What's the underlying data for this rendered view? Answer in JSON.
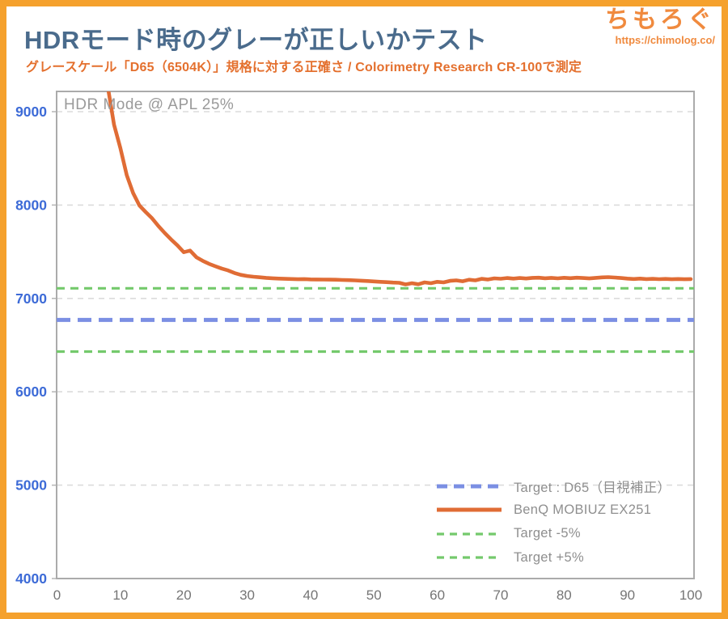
{
  "page": {
    "bg": "#FFFFFF",
    "frame_color": "#F5A12D"
  },
  "header": {
    "title": "HDRモード時のグレーが正しいかテスト",
    "title_color": "#4A6B8C",
    "subtitle": "グレースケール「D65（6504K）」規格に対する正確さ / Colorimetry Research CR-100で測定",
    "subtitle_color": "#E4702E",
    "logo": {
      "text": "ちもろぐ",
      "url": "https://chimolog.co/",
      "color": "#F08A3E"
    }
  },
  "chart_data": {
    "type": "line",
    "title": "HDRモード時のグレーが正しいかテスト",
    "annotation": "HDR Mode @ APL 25%",
    "xlabel": "",
    "ylabel": "",
    "x_axis": {
      "ticks": [
        0,
        10,
        20,
        30,
        40,
        50,
        60,
        70,
        80,
        90,
        100
      ],
      "range": [
        0,
        100
      ],
      "label_color": "#757575"
    },
    "y_axis": {
      "ticks": [
        4000,
        5000,
        6000,
        7000,
        8000,
        9000
      ],
      "range": [
        4000,
        9220
      ],
      "label_color": "#3D6BD7"
    },
    "grid": {
      "color": "#DBDBDB",
      "style": "dashed",
      "horizontal": true,
      "vertical": false
    },
    "border_color": "#ABABAB",
    "tick_color": "#B5B5B5",
    "target_lines": [
      {
        "name": "target-d65",
        "label": "Target : D65（目視補正）",
        "value": 6770,
        "color": "#7B8FE3",
        "style": "thick-dashed"
      },
      {
        "name": "target-minus5",
        "label": "Target -5%",
        "value": 6431,
        "color": "#74C96C",
        "style": "dashed"
      },
      {
        "name": "target-plus5",
        "label": "Target +5%",
        "value": 7108,
        "color": "#74C96C",
        "style": "dashed"
      }
    ],
    "series": [
      {
        "name": "BenQ MOBIUZ EX251",
        "color": "#E06C35",
        "x": [
          7,
          8,
          9,
          10,
          11,
          12,
          13,
          14,
          15,
          16,
          17,
          18,
          19,
          20,
          21,
          22,
          23,
          24,
          25,
          26,
          27,
          28,
          29,
          30,
          31,
          32,
          33,
          34,
          35,
          36,
          37,
          38,
          39,
          40,
          41,
          42,
          43,
          44,
          45,
          46,
          47,
          48,
          49,
          50,
          51,
          52,
          53,
          54,
          55,
          56,
          57,
          58,
          59,
          60,
          61,
          62,
          63,
          64,
          65,
          66,
          67,
          68,
          69,
          70,
          71,
          72,
          73,
          74,
          75,
          76,
          77,
          78,
          79,
          80,
          81,
          82,
          83,
          84,
          85,
          86,
          87,
          88,
          89,
          90,
          91,
          92,
          93,
          94,
          95,
          96,
          97,
          98,
          99,
          100
        ],
        "y": [
          9800,
          9270,
          8860,
          8610,
          8320,
          8130,
          7995,
          7925,
          7858,
          7775,
          7700,
          7632,
          7568,
          7495,
          7512,
          7440,
          7402,
          7370,
          7344,
          7320,
          7300,
          7272,
          7252,
          7240,
          7232,
          7226,
          7220,
          7216,
          7212,
          7210,
          7208,
          7205,
          7207,
          7204,
          7203,
          7202,
          7201,
          7200,
          7198,
          7196,
          7193,
          7190,
          7186,
          7182,
          7178,
          7174,
          7170,
          7167,
          7150,
          7163,
          7152,
          7172,
          7163,
          7178,
          7172,
          7188,
          7193,
          7184,
          7200,
          7193,
          7210,
          7203,
          7215,
          7211,
          7218,
          7212,
          7218,
          7213,
          7220,
          7222,
          7216,
          7220,
          7215,
          7221,
          7217,
          7222,
          7218,
          7214,
          7220,
          7225,
          7228,
          7224,
          7218,
          7212,
          7208,
          7212,
          7207,
          7210,
          7206,
          7209,
          7205,
          7208,
          7205,
          7207
        ]
      }
    ],
    "legend": {
      "position": "inside-bottom-right",
      "items": [
        {
          "label": "Target : D65（目視補正）",
          "color": "#7B8FE3",
          "style": "thick-dashed"
        },
        {
          "label": "BenQ MOBIUZ EX251",
          "color": "#E06C35",
          "style": "solid"
        },
        {
          "label": "Target -5%",
          "color": "#74C96C",
          "style": "dashed"
        },
        {
          "label": "Target +5%",
          "color": "#74C96C",
          "style": "dashed"
        }
      ]
    }
  }
}
